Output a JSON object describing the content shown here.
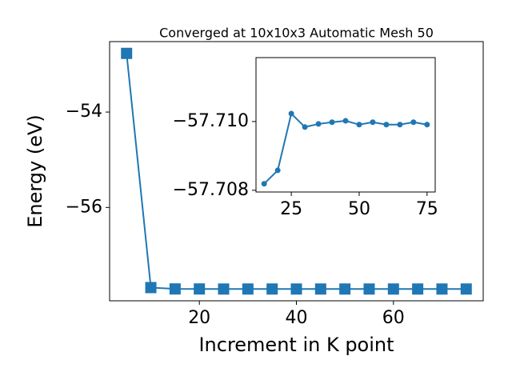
{
  "chart_data": [
    {
      "type": "line",
      "title": "Converged at 10x10x3 Automatic Mesh 50",
      "x_label": "Increment in K point",
      "y_label": "Energy (eV)",
      "series": [
        {
          "color": "#1f77b4",
          "marker": "square",
          "x": [
            5,
            10,
            15,
            20,
            25,
            30,
            35,
            40,
            45,
            50,
            55,
            60,
            65,
            70,
            75
          ],
          "values": [
            -52.77,
            -57.68,
            -57.7082,
            -57.7086,
            -57.7102,
            -57.7098,
            -57.7099,
            -57.71,
            -57.71,
            -57.7099,
            -57.71,
            -57.7099,
            -57.7099,
            -57.71,
            -57.7099
          ]
        }
      ],
      "xlim": [
        1.5,
        78.5
      ],
      "ylim": [
        -57.957,
        -52.523
      ],
      "xticks": [
        20,
        40,
        60
      ],
      "yticks": [
        {
          "value": -54,
          "label": "−54"
        },
        {
          "value": -56,
          "label": "−56"
        }
      ]
    },
    {
      "type": "line",
      "series": [
        {
          "color": "#1f77b4",
          "marker": "circle",
          "x": [
            15,
            20,
            25,
            30,
            35,
            40,
            45,
            50,
            55,
            60,
            65,
            70,
            75
          ],
          "values": [
            -57.70819,
            -57.70858,
            -57.71023,
            -57.70984,
            -57.70993,
            -57.70998,
            -57.71002,
            -57.70991,
            -57.70998,
            -57.70991,
            -57.70991,
            -57.70998,
            -57.70991
          ]
        }
      ],
      "xlim": [
        12,
        78
      ],
      "ylim": [
        -57.70795,
        -57.71186
      ],
      "xticks": [
        25,
        50,
        75
      ],
      "yticks": [
        {
          "value": -57.71,
          "label": "−57.710"
        },
        {
          "value": -57.708,
          "label": "−57.708"
        }
      ]
    }
  ]
}
